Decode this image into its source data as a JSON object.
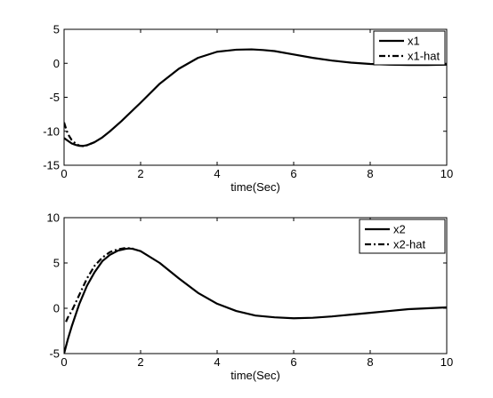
{
  "chart_data": [
    {
      "type": "line",
      "title": "",
      "xlabel": "time(Sec)",
      "ylabel": "",
      "xlim": [
        0,
        10
      ],
      "ylim": [
        -15,
        5
      ],
      "xticks": [
        0,
        2,
        4,
        6,
        8,
        10
      ],
      "yticks": [
        -15,
        -10,
        -5,
        0,
        5
      ],
      "grid": false,
      "legend_position": "top-right",
      "series": [
        {
          "name": "x1",
          "style": "solid",
          "color": "#000000",
          "x": [
            0,
            0.1,
            0.2,
            0.3,
            0.4,
            0.5,
            0.6,
            0.8,
            1.0,
            1.2,
            1.5,
            2.0,
            2.5,
            3.0,
            3.5,
            4.0,
            4.5,
            4.9,
            5.2,
            5.5,
            6.0,
            6.5,
            7.0,
            7.5,
            8.0,
            8.5,
            9.0,
            9.5,
            10.0
          ],
          "y": [
            -11.0,
            -11.4,
            -11.8,
            -12.0,
            -12.15,
            -12.15,
            -12.05,
            -11.6,
            -10.9,
            -10.0,
            -8.5,
            -5.8,
            -3.0,
            -0.8,
            0.8,
            1.7,
            2.0,
            2.05,
            1.95,
            1.8,
            1.3,
            0.8,
            0.4,
            0.1,
            -0.1,
            -0.2,
            -0.25,
            -0.25,
            -0.2
          ]
        },
        {
          "name": "x1-hat",
          "style": "dashdot",
          "color": "#000000",
          "x": [
            0,
            0.05,
            0.1,
            0.2,
            0.3,
            0.4,
            0.5,
            0.6,
            0.8
          ],
          "y": [
            -8.7,
            -9.6,
            -10.4,
            -11.3,
            -11.8,
            -12.1,
            -12.2,
            -12.05,
            -11.6
          ]
        }
      ]
    },
    {
      "type": "line",
      "title": "",
      "xlabel": "time(Sec)",
      "ylabel": "",
      "xlim": [
        0,
        10
      ],
      "ylim": [
        -5,
        10
      ],
      "xticks": [
        0,
        2,
        4,
        6,
        8,
        10
      ],
      "yticks": [
        -5,
        0,
        5,
        10
      ],
      "grid": false,
      "legend_position": "top-right",
      "series": [
        {
          "name": "x2",
          "style": "solid",
          "color": "#000000",
          "x": [
            0,
            0.1,
            0.2,
            0.4,
            0.6,
            0.8,
            1.0,
            1.2,
            1.4,
            1.6,
            1.7,
            1.8,
            2.0,
            2.5,
            3.0,
            3.5,
            4.0,
            4.5,
            5.0,
            5.5,
            6.0,
            6.5,
            7.0,
            7.5,
            8.0,
            8.5,
            9.0,
            9.5,
            10.0
          ],
          "y": [
            -5.0,
            -3.4,
            -2.0,
            0.5,
            2.5,
            4.0,
            5.2,
            5.9,
            6.35,
            6.55,
            6.6,
            6.55,
            6.3,
            5.0,
            3.3,
            1.7,
            0.5,
            -0.3,
            -0.8,
            -1.0,
            -1.1,
            -1.05,
            -0.9,
            -0.7,
            -0.5,
            -0.3,
            -0.1,
            0.0,
            0.1
          ]
        },
        {
          "name": "x2-hat",
          "style": "dashdot",
          "color": "#000000",
          "x": [
            0.05,
            0.1,
            0.2,
            0.4,
            0.6,
            0.8,
            1.0,
            1.2,
            1.4,
            1.6,
            1.8
          ],
          "y": [
            -1.5,
            -1.0,
            -0.3,
            1.5,
            3.3,
            4.7,
            5.6,
            6.2,
            6.5,
            6.65,
            6.6
          ]
        }
      ]
    }
  ]
}
